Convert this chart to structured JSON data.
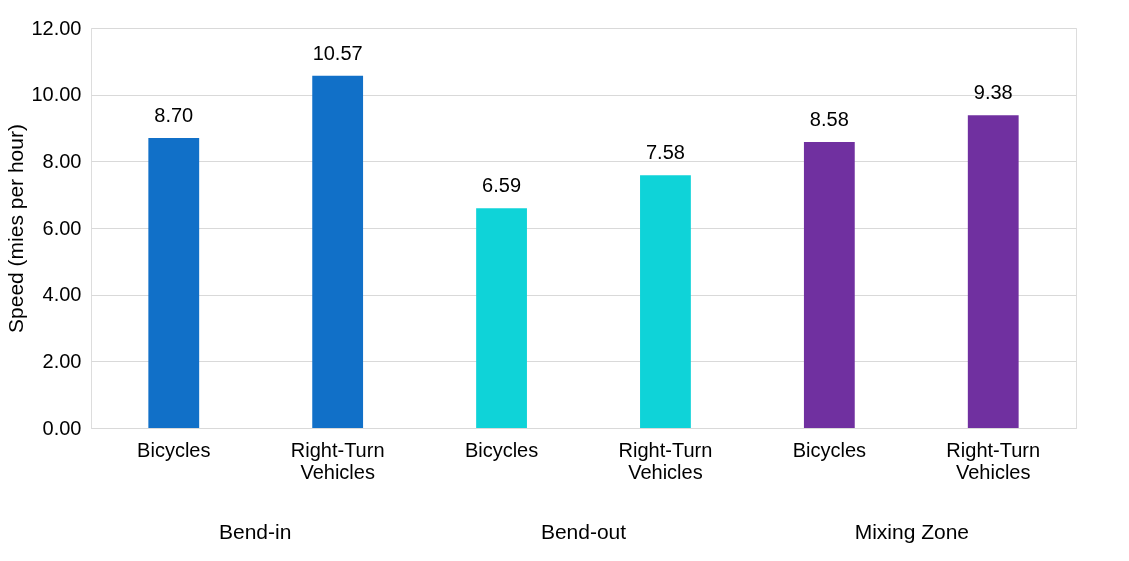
{
  "chart_data": {
    "type": "bar",
    "ylabel": "Speed (mies per hour)",
    "categories": [
      "Bicycles",
      "Right-Turn Vehicles",
      "Bicycles",
      "Right-Turn Vehicles",
      "Bicycles",
      "Right-Turn Vehicles"
    ],
    "values": [
      8.7,
      10.57,
      6.59,
      7.58,
      8.58,
      9.38
    ],
    "colors": [
      "#1170c8",
      "#1170c8",
      "#0fd3d8",
      "#0fd3d8",
      "#7030a0",
      "#7030a0"
    ],
    "value_labels": [
      "8.70",
      "10.57",
      "6.59",
      "7.58",
      "8.58",
      "9.38"
    ],
    "ylim": [
      0,
      12
    ],
    "yticks": [
      {
        "value": 0,
        "label": "0.00"
      },
      {
        "value": 2,
        "label": "2.00"
      },
      {
        "value": 4,
        "label": "4.00"
      },
      {
        "value": 6,
        "label": "6.00"
      },
      {
        "value": 8,
        "label": "8.00"
      },
      {
        "value": 10,
        "label": "10.00"
      },
      {
        "value": 12,
        "label": "12.00"
      }
    ],
    "annotations": [
      "Bend-in",
      "Bend-out",
      "Mixing Zone"
    ],
    "grid": "y"
  }
}
